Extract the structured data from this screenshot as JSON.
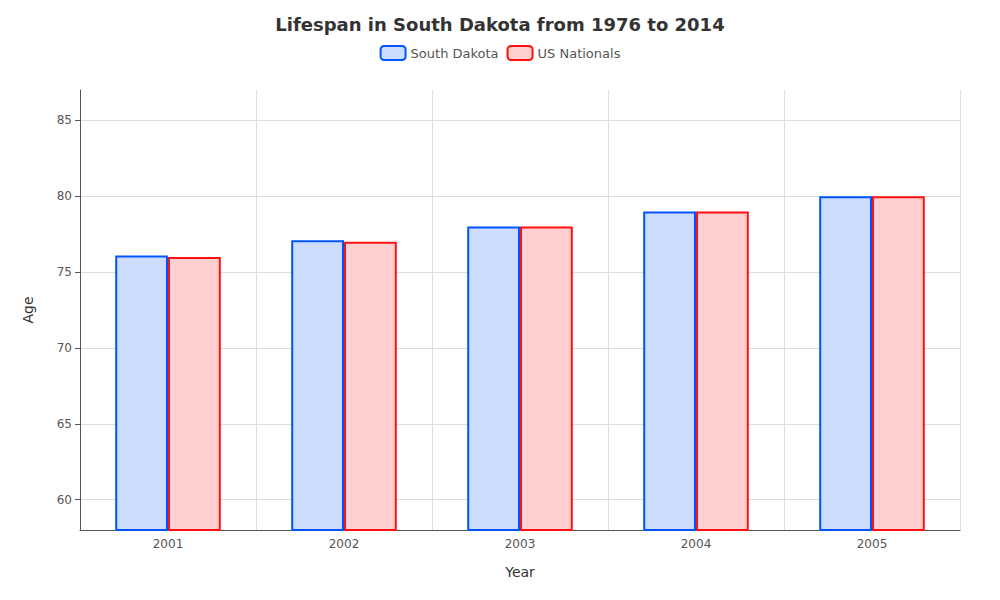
{
  "chart_data": {
    "type": "bar",
    "title": "Lifespan in South Dakota from 1976 to 2014",
    "x_label": "Year",
    "y_label": "Age",
    "categories": [
      "2001",
      "2002",
      "2003",
      "2004",
      "2005"
    ],
    "series": [
      {
        "name": "South Dakota",
        "color": "#0055ff",
        "values": [
          76.1,
          77.1,
          78.0,
          79.0,
          80.0
        ]
      },
      {
        "name": "US Nationals",
        "color": "#ff1111",
        "values": [
          76.0,
          77.0,
          78.0,
          79.0,
          80.0
        ]
      }
    ],
    "ylim": [
      58,
      87
    ],
    "yticks": [
      60,
      65,
      70,
      75,
      80,
      85
    ],
    "grid": true,
    "legend": "top"
  }
}
